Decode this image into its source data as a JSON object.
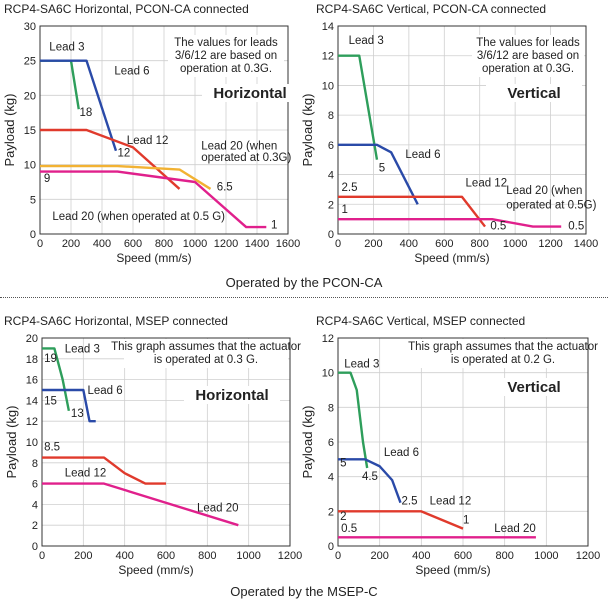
{
  "page": {
    "caption_top": "Operated by the PCON-CA",
    "caption_bottom": "Operated by the MSEP-C"
  },
  "chart_data": [
    {
      "type": "line",
      "title": "RCP4-SA6C Horizontal, PCON-CA connected",
      "xlabel": "Speed (mm/s)",
      "ylabel": "Payload (kg)",
      "xlim": [
        0,
        1600
      ],
      "ylim": [
        0,
        30
      ],
      "xticks": [
        0,
        200,
        400,
        600,
        800,
        1000,
        1200,
        1400,
        1600
      ],
      "yticks": [
        0,
        5,
        10,
        15,
        20,
        25,
        30
      ],
      "grid": true,
      "note": "The values for leads 3/6/12 are based on operation at 0.3G.",
      "tag": "Horizontal",
      "series": [
        {
          "name": "Lead 3",
          "color": "#2e9e5b",
          "x": [
            0,
            200,
            250
          ],
          "y": [
            25,
            25,
            18
          ]
        },
        {
          "name": "Lead 6",
          "color": "#2a4aa8",
          "x": [
            0,
            300,
            490
          ],
          "y": [
            25,
            25,
            12
          ]
        },
        {
          "name": "Lead 12",
          "color": "#e03a2c",
          "x": [
            0,
            300,
            600,
            900
          ],
          "y": [
            15,
            15,
            12.5,
            6.5
          ]
        },
        {
          "name": "Lead 20 (when operated at 0.3G)",
          "color": "#f2b233",
          "x": [
            0,
            500,
            900,
            1100
          ],
          "y": [
            9.8,
            9.8,
            9.3,
            6.5
          ]
        },
        {
          "name": "Lead 20 (when operated at 0.5 G)",
          "color": "#e0208c",
          "x": [
            0,
            500,
            1000,
            1330,
            1460
          ],
          "y": [
            9,
            9,
            7.5,
            1,
            1
          ]
        }
      ],
      "labels": [
        {
          "text": "Lead 3",
          "x": 60,
          "y": 26.5
        },
        {
          "text": "Lead 6",
          "x": 480,
          "y": 23
        },
        {
          "text": "Lead 12",
          "x": 560,
          "y": 13
        },
        {
          "text": "Lead 20 (when",
          "x": 1040,
          "y": 12.2
        },
        {
          "text": "operated at 0.3G)",
          "x": 1040,
          "y": 10.5
        },
        {
          "text": "Lead 20 (when operated at 0.5 G)",
          "x": 80,
          "y": 2
        },
        {
          "text": "18",
          "x": 255,
          "y": 17
        },
        {
          "text": "12",
          "x": 500,
          "y": 11.2
        },
        {
          "text": "6.5",
          "x": 1140,
          "y": 6.3
        },
        {
          "text": "9",
          "x": 25,
          "y": 7.5
        },
        {
          "text": "1",
          "x": 1490,
          "y": 0.8
        }
      ]
    },
    {
      "type": "line",
      "title": "RCP4-SA6C Vertical, PCON-CA connected",
      "xlabel": "Speed (mm/s)",
      "ylabel": "Payload (kg)",
      "xlim": [
        0,
        1400
      ],
      "ylim": [
        0,
        14
      ],
      "xticks": [
        0,
        200,
        400,
        600,
        800,
        1000,
        1200,
        1400
      ],
      "yticks": [
        0,
        2,
        4,
        6,
        8,
        10,
        12,
        14
      ],
      "grid": true,
      "note": "The values for leads 3/6/12 are based on operation at 0.3G.",
      "tag": "Vertical",
      "series": [
        {
          "name": "Lead 3",
          "color": "#2e9e5b",
          "x": [
            0,
            120,
            220
          ],
          "y": [
            12,
            12,
            5
          ]
        },
        {
          "name": "Lead 6",
          "color": "#2a4aa8",
          "x": [
            0,
            220,
            300,
            450
          ],
          "y": [
            6,
            6,
            5.5,
            2
          ]
        },
        {
          "name": "Lead 12",
          "color": "#e03a2c",
          "x": [
            0,
            700,
            830
          ],
          "y": [
            2.5,
            2.5,
            0.5
          ]
        },
        {
          "name": "Lead 20 (when operated at 0.5G)",
          "color": "#e0208c",
          "x": [
            0,
            870,
            1100,
            1260
          ],
          "y": [
            1,
            1,
            0.5,
            0.5
          ]
        }
      ],
      "labels": [
        {
          "text": "Lead 3",
          "x": 60,
          "y": 12.8
        },
        {
          "text": "Lead 6",
          "x": 380,
          "y": 5.1
        },
        {
          "text": "Lead 12",
          "x": 720,
          "y": 3.2
        },
        {
          "text": "Lead 20 (when",
          "x": 950,
          "y": 2.7
        },
        {
          "text": "operated at 0.5G)",
          "x": 950,
          "y": 1.7
        },
        {
          "text": "5",
          "x": 230,
          "y": 4.2
        },
        {
          "text": "2.5",
          "x": 20,
          "y": 2.9
        },
        {
          "text": "1",
          "x": 20,
          "y": 1.4
        },
        {
          "text": "0.5",
          "x": 860,
          "y": 0.3
        },
        {
          "text": "0.5",
          "x": 1300,
          "y": 0.3
        }
      ]
    },
    {
      "type": "line",
      "title": "RCP4-SA6C Horizontal, MSEP connected",
      "xlabel": "Speed (mm/s)",
      "ylabel": "Payload (kg)",
      "xlim": [
        0,
        1200
      ],
      "ylim": [
        0,
        20
      ],
      "xticks": [
        0,
        200,
        400,
        600,
        800,
        1000,
        1200
      ],
      "yticks": [
        0,
        2,
        4,
        6,
        8,
        10,
        12,
        14,
        16,
        18,
        20
      ],
      "grid": true,
      "note": "This graph assumes that the actuator is operated at 0.3 G.",
      "tag": "Horizontal",
      "series": [
        {
          "name": "Lead 3",
          "color": "#2e9e5b",
          "x": [
            0,
            60,
            100,
            130
          ],
          "y": [
            19,
            19,
            16,
            13
          ]
        },
        {
          "name": "Lead 6",
          "color": "#2a4aa8",
          "x": [
            0,
            200,
            230,
            260
          ],
          "y": [
            15,
            15,
            12,
            12
          ]
        },
        {
          "name": "Lead 12",
          "color": "#e03a2c",
          "x": [
            0,
            300,
            400,
            500,
            600
          ],
          "y": [
            8.5,
            8.5,
            7,
            6,
            6
          ]
        },
        {
          "name": "Lead 20",
          "color": "#e0208c",
          "x": [
            0,
            300,
            950
          ],
          "y": [
            6,
            6,
            2
          ]
        }
      ],
      "labels": [
        {
          "text": "Lead 3",
          "x": 110,
          "y": 18.6
        },
        {
          "text": "Lead 6",
          "x": 220,
          "y": 14.6
        },
        {
          "text": "Lead 12",
          "x": 110,
          "y": 6.7
        },
        {
          "text": "Lead 20",
          "x": 750,
          "y": 3.3
        },
        {
          "text": "19",
          "x": 10,
          "y": 17.7
        },
        {
          "text": "15",
          "x": 10,
          "y": 13.6
        },
        {
          "text": "13",
          "x": 140,
          "y": 12.4
        },
        {
          "text": "8.5",
          "x": 10,
          "y": 9.2
        }
      ]
    },
    {
      "type": "line",
      "title": "RCP4-SA6C Vertical, MSEP connected",
      "xlabel": "Speed (mm/s)",
      "ylabel": "Payload (kg)",
      "xlim": [
        0,
        1200
      ],
      "ylim": [
        0,
        12
      ],
      "xticks": [
        0,
        200,
        400,
        600,
        800,
        1000,
        1200
      ],
      "yticks": [
        0,
        2,
        4,
        6,
        8,
        10,
        12
      ],
      "grid": true,
      "note": "This graph assumes that the actuator is operated at 0.2 G.",
      "tag": "Vertical",
      "series": [
        {
          "name": "Lead 3",
          "color": "#2e9e5b",
          "x": [
            0,
            60,
            90,
            120,
            140
          ],
          "y": [
            10,
            10,
            9,
            6,
            4.5
          ]
        },
        {
          "name": "Lead 6",
          "color": "#2a4aa8",
          "x": [
            0,
            130,
            200,
            260,
            300
          ],
          "y": [
            5,
            5,
            4.6,
            3.8,
            2.5
          ]
        },
        {
          "name": "Lead 12",
          "color": "#e03a2c",
          "x": [
            0,
            400,
            600
          ],
          "y": [
            2,
            2,
            1
          ]
        },
        {
          "name": "Lead 20",
          "color": "#e0208c",
          "x": [
            0,
            950
          ],
          "y": [
            0.5,
            0.5
          ]
        }
      ],
      "labels": [
        {
          "text": "Lead 3",
          "x": 30,
          "y": 10.3
        },
        {
          "text": "Lead 6",
          "x": 220,
          "y": 5.2
        },
        {
          "text": "Lead 12",
          "x": 440,
          "y": 2.4
        },
        {
          "text": "Lead 20",
          "x": 750,
          "y": 0.8
        },
        {
          "text": "4.5",
          "x": 115,
          "y": 3.8
        },
        {
          "text": "2.5",
          "x": 305,
          "y": 2.4
        },
        {
          "text": "5",
          "x": 10,
          "y": 4.6
        },
        {
          "text": "2",
          "x": 10,
          "y": 1.5
        },
        {
          "text": "1",
          "x": 600,
          "y": 1.3
        },
        {
          "text": "0.5",
          "x": 15,
          "y": 0.8
        }
      ]
    }
  ]
}
